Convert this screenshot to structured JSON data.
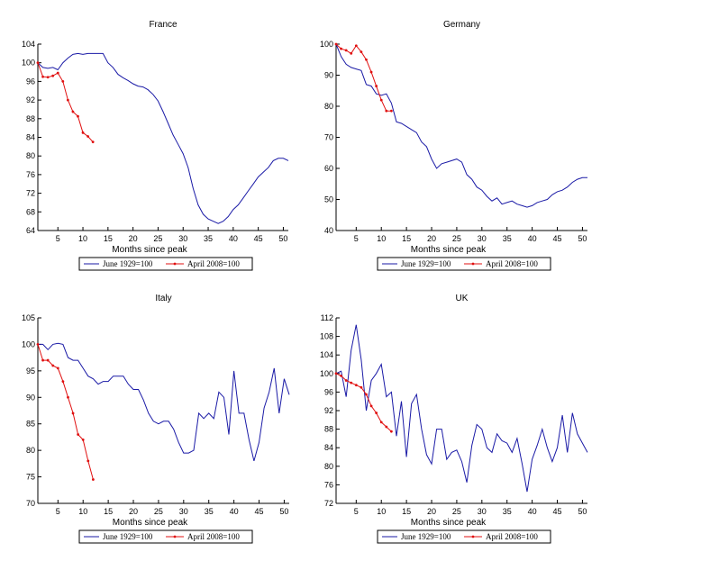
{
  "colors": {
    "june1929": "#1a1aa6",
    "april2008": "#e01010"
  },
  "legend": {
    "june1929": "June 1929=100",
    "april2008": "April 2008=100"
  },
  "chart_data": [
    {
      "type": "line",
      "title": "France",
      "xlabel": "Months since peak",
      "xlim": [
        1,
        51
      ],
      "ylim": [
        64,
        104
      ],
      "xticks": [
        5,
        10,
        15,
        20,
        25,
        30,
        35,
        40,
        45,
        50
      ],
      "yticks": [
        64,
        68,
        72,
        76,
        80,
        84,
        88,
        92,
        96,
        100,
        104
      ],
      "legend_position": "bottom",
      "series": [
        {
          "name": "June 1929=100",
          "key": "june1929",
          "markers": false,
          "x": [
            1,
            2,
            3,
            4,
            5,
            6,
            7,
            8,
            9,
            10,
            11,
            12,
            13,
            14,
            15,
            16,
            17,
            18,
            19,
            20,
            21,
            22,
            23,
            24,
            25,
            26,
            27,
            28,
            29,
            30,
            31,
            32,
            33,
            34,
            35,
            36,
            37,
            38,
            39,
            40,
            41,
            42,
            43,
            44,
            45,
            46,
            47,
            48,
            49,
            50,
            51
          ],
          "y": [
            100,
            99,
            98.8,
            99,
            98.5,
            100,
            101,
            101.8,
            102,
            101.8,
            102,
            102,
            102,
            102,
            100,
            99,
            97.5,
            96.8,
            96.2,
            95.5,
            95,
            94.8,
            94.2,
            93.2,
            91.8,
            89.5,
            87,
            84.5,
            82.5,
            80.5,
            77.5,
            73,
            69.5,
            67.5,
            66.5,
            66,
            65.5,
            66,
            67,
            68.5,
            69.5,
            71,
            72.5,
            74,
            75.5,
            76.5,
            77.5,
            79,
            79.5,
            79.5,
            79
          ]
        },
        {
          "name": "April 2008=100",
          "key": "april2008",
          "markers": true,
          "x": [
            1,
            2,
            3,
            4,
            5,
            6,
            7,
            8,
            9,
            10,
            11,
            12
          ],
          "y": [
            100,
            97,
            96.9,
            97.2,
            97.8,
            96,
            92,
            89.5,
            88.5,
            85,
            84.2,
            83
          ]
        }
      ]
    },
    {
      "type": "line",
      "title": "Germany",
      "xlabel": "Months since peak",
      "xlim": [
        1,
        51
      ],
      "ylim": [
        40,
        100
      ],
      "xticks": [
        5,
        10,
        15,
        20,
        25,
        30,
        35,
        40,
        45,
        50
      ],
      "yticks": [
        40,
        50,
        60,
        70,
        80,
        90,
        100
      ],
      "legend_position": "bottom",
      "series": [
        {
          "name": "June 1929=100",
          "key": "june1929",
          "markers": false,
          "x": [
            1,
            2,
            3,
            4,
            5,
            6,
            7,
            8,
            9,
            10,
            11,
            12,
            13,
            14,
            15,
            16,
            17,
            18,
            19,
            20,
            21,
            22,
            23,
            24,
            25,
            26,
            27,
            28,
            29,
            30,
            31,
            32,
            33,
            34,
            35,
            36,
            37,
            38,
            39,
            40,
            41,
            42,
            43,
            44,
            45,
            46,
            47,
            48,
            49,
            50,
            51
          ],
          "y": [
            100,
            96,
            93.5,
            92.5,
            92,
            91.5,
            87,
            86.5,
            84,
            83.5,
            84,
            81,
            75,
            74.5,
            73.5,
            72.5,
            71.5,
            68.5,
            67,
            63,
            60,
            61.5,
            62,
            62.5,
            63,
            62,
            58,
            56.5,
            54,
            53,
            51,
            49.5,
            50.5,
            48.5,
            49,
            49.5,
            48.5,
            48,
            47.5,
            48,
            49,
            49.5,
            50,
            51.5,
            52.5,
            53,
            54,
            55.5,
            56.5,
            57,
            57
          ]
        },
        {
          "name": "April 2008=100",
          "key": "april2008",
          "markers": true,
          "x": [
            1,
            2,
            3,
            4,
            5,
            6,
            7,
            8,
            9,
            10,
            11,
            12
          ],
          "y": [
            100,
            98.5,
            98,
            97,
            99.5,
            97.5,
            95,
            91,
            86.5,
            82,
            78.5,
            78.5
          ]
        }
      ]
    },
    {
      "type": "line",
      "title": "Italy",
      "xlabel": "Months since peak",
      "xlim": [
        1,
        51
      ],
      "ylim": [
        70,
        105
      ],
      "xticks": [
        5,
        10,
        15,
        20,
        25,
        30,
        35,
        40,
        45,
        50
      ],
      "yticks": [
        70,
        75,
        80,
        85,
        90,
        95,
        100,
        105
      ],
      "legend_position": "bottom",
      "series": [
        {
          "name": "June 1929=100",
          "key": "june1929",
          "markers": false,
          "x": [
            1,
            2,
            3,
            4,
            5,
            6,
            7,
            8,
            9,
            10,
            11,
            12,
            13,
            14,
            15,
            16,
            17,
            18,
            19,
            20,
            21,
            22,
            23,
            24,
            25,
            26,
            27,
            28,
            29,
            30,
            31,
            32,
            33,
            34,
            35,
            36,
            37,
            38,
            39,
            40,
            41,
            42,
            43,
            44,
            45,
            46,
            47,
            48,
            49,
            50,
            51
          ],
          "y": [
            100,
            100,
            99,
            100,
            100.2,
            100,
            97.5,
            97,
            97,
            95.5,
            94,
            93.5,
            92.5,
            93,
            93,
            94,
            94,
            94,
            92.5,
            91.5,
            91.5,
            89.5,
            87,
            85.5,
            85,
            85.5,
            85.5,
            84,
            81.5,
            79.5,
            79.5,
            80,
            87,
            86,
            87,
            86,
            91,
            90,
            83,
            95,
            87,
            87,
            82,
            78,
            81.5,
            88,
            91,
            95.5,
            87,
            93.5,
            90.5
          ]
        },
        {
          "name": "April 2008=100",
          "key": "april2008",
          "markers": true,
          "x": [
            1,
            2,
            3,
            4,
            5,
            6,
            7,
            8,
            9,
            10,
            11,
            12
          ],
          "y": [
            100,
            97,
            97,
            96,
            95.5,
            93,
            90,
            87,
            83,
            82,
            78,
            74.5
          ]
        }
      ]
    },
    {
      "type": "line",
      "title": "UK",
      "xlabel": "Months since peak",
      "xlim": [
        1,
        51
      ],
      "ylim": [
        72,
        112
      ],
      "xticks": [
        5,
        10,
        15,
        20,
        25,
        30,
        35,
        40,
        45,
        50
      ],
      "yticks": [
        72,
        76,
        80,
        84,
        88,
        92,
        96,
        100,
        104,
        108,
        112
      ],
      "legend_position": "bottom",
      "series": [
        {
          "name": "June 1929=100",
          "key": "june1929",
          "markers": false,
          "x": [
            1,
            2,
            3,
            4,
            5,
            6,
            7,
            8,
            9,
            10,
            11,
            12,
            13,
            14,
            15,
            16,
            17,
            18,
            19,
            20,
            21,
            22,
            23,
            24,
            25,
            26,
            27,
            28,
            29,
            30,
            31,
            32,
            33,
            34,
            35,
            36,
            37,
            38,
            39,
            40,
            41,
            42,
            43,
            44,
            45,
            46,
            47,
            48,
            49,
            50,
            51
          ],
          "y": [
            100,
            100.5,
            95,
            105,
            110.5,
            103,
            92,
            98.5,
            100,
            102,
            95,
            96,
            86.5,
            94,
            82,
            93.5,
            95.5,
            88,
            82.5,
            80.5,
            88,
            88,
            81.5,
            83,
            83.5,
            81,
            76.5,
            84.5,
            89,
            88,
            84,
            83,
            87,
            85.5,
            85,
            83,
            86,
            80.5,
            74.5,
            81.5,
            84.5,
            88,
            84,
            81,
            84,
            91,
            83,
            91.5,
            87,
            85,
            83
          ]
        },
        {
          "name": "April 2008=100",
          "key": "april2008",
          "markers": true,
          "x": [
            1,
            2,
            3,
            4,
            5,
            6,
            7,
            8,
            9,
            10,
            11,
            12
          ],
          "y": [
            100,
            99.5,
            98.5,
            98,
            97.5,
            97,
            95.5,
            93,
            91.5,
            89.5,
            88.5,
            87.5
          ]
        }
      ]
    }
  ]
}
